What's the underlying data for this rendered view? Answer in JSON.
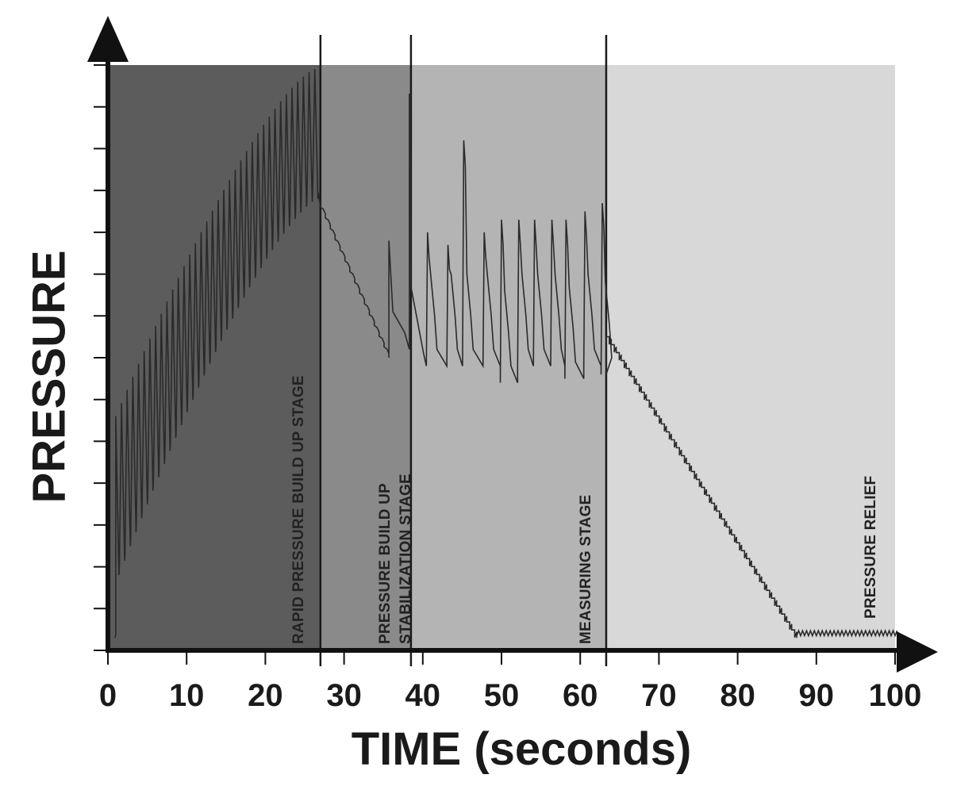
{
  "chart_data": {
    "type": "line",
    "title": "",
    "xlabel": "TIME (seconds)",
    "ylabel": "PRESSURE",
    "xlim": [
      0,
      100
    ],
    "ylim": [
      0,
      14
    ],
    "x_ticks": [
      "0",
      "10",
      "20",
      "30",
      "40",
      "50",
      "60",
      "70",
      "80",
      "90",
      "100"
    ],
    "y_ticks_count": 14,
    "y_tick_labels_shown": false,
    "grid": false,
    "stage_boundaries": [
      27,
      38.5,
      63.3
    ],
    "stages": [
      {
        "label": "RAPID PRESSURE BUILD UP STAGE",
        "start": 0,
        "end": 27,
        "shade": "#5c5c5c"
      },
      {
        "label": "PRESSURE BUILD UP\nSTABILIZATION STAGE",
        "start": 27,
        "end": 38.5,
        "shade": "#8a8a8a"
      },
      {
        "label": "MEASURING STAGE",
        "start": 38.5,
        "end": 63.3,
        "shade": "#b4b4b4"
      },
      {
        "label": "PRESSURE RELIEF",
        "start": 63.3,
        "end": 100,
        "shade": "#d8d8d8"
      }
    ],
    "series": [
      {
        "style": "sawtooth",
        "note_segments": [
          {
            "t_start": 1.0,
            "t_end": 27.0,
            "teeth": 36,
            "low_start": 1.8,
            "low_end": 10.8,
            "high_start": 5.6,
            "high_end": 13.9
          },
          {
            "t_start": 27.0,
            "t_end": 35.7,
            "from": 10.6,
            "to": 7.0
          },
          {
            "t_start": 35.7,
            "t_end": 38.3,
            "peak": 9.8,
            "low": 7.2
          },
          {
            "t_start": 38.3,
            "t_end": 38.6,
            "peak": 13.3,
            "low": 7.1
          },
          {
            "measuring_peaks": [
              {
                "t": 40.6,
                "peak": 10.0,
                "low": 6.8
              },
              {
                "t": 43.2,
                "peak": 9.7,
                "low": 6.8
              },
              {
                "t": 45.2,
                "peak": 12.2,
                "low": 6.8
              },
              {
                "t": 47.8,
                "peak": 10.0,
                "low": 6.8
              },
              {
                "t": 50.0,
                "peak": 10.3,
                "low": 6.4
              },
              {
                "t": 52.2,
                "peak": 10.3,
                "low": 6.8
              },
              {
                "t": 54.2,
                "peak": 10.3,
                "low": 6.8
              },
              {
                "t": 56.4,
                "peak": 10.3,
                "low": 6.8
              },
              {
                "t": 58.2,
                "peak": 10.3,
                "low": 6.5
              },
              {
                "t": 60.6,
                "peak": 10.5,
                "low": 6.8
              },
              {
                "t": 62.8,
                "peak": 10.7,
                "low": 6.6
              }
            ]
          },
          {
            "t_start": 63.3,
            "t_end": 87.5,
            "steps": 38,
            "from": 7.5,
            "to": 0.3
          },
          {
            "t_start": 87.5,
            "t_end": 100,
            "ripple_level": 0.35
          }
        ]
      }
    ]
  }
}
